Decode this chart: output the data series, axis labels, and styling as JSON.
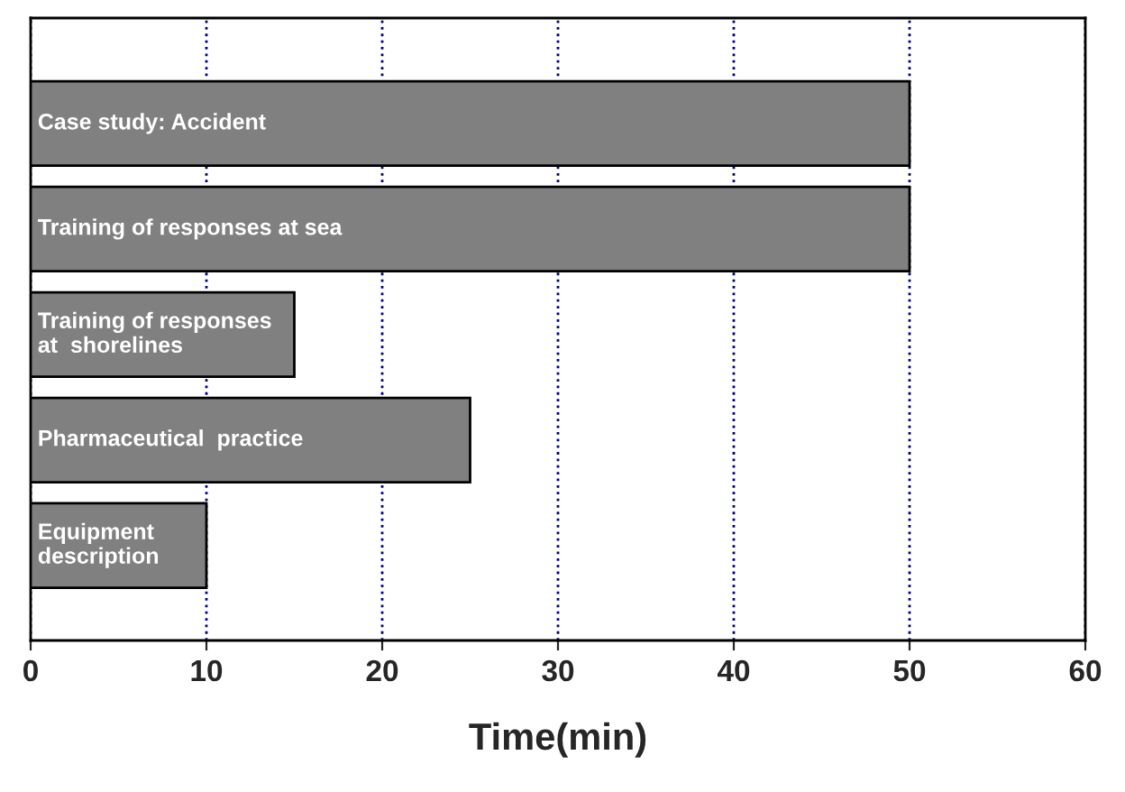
{
  "chart_data": {
    "type": "bar",
    "orientation": "horizontal",
    "xlabel": "Time(min)",
    "categories": [
      "Case study: Accident",
      "Training of responses at sea",
      "Training of responses\nat  shorelines",
      "Pharmaceutical  practice",
      "Equipment\ndescription"
    ],
    "values": [
      50,
      50,
      15,
      25,
      10
    ],
    "color": "#808080",
    "xlim": [
      0,
      60
    ],
    "xticks": [
      0,
      10,
      20,
      30,
      40,
      50,
      60
    ],
    "grid": "x",
    "tick_labels": "x"
  }
}
